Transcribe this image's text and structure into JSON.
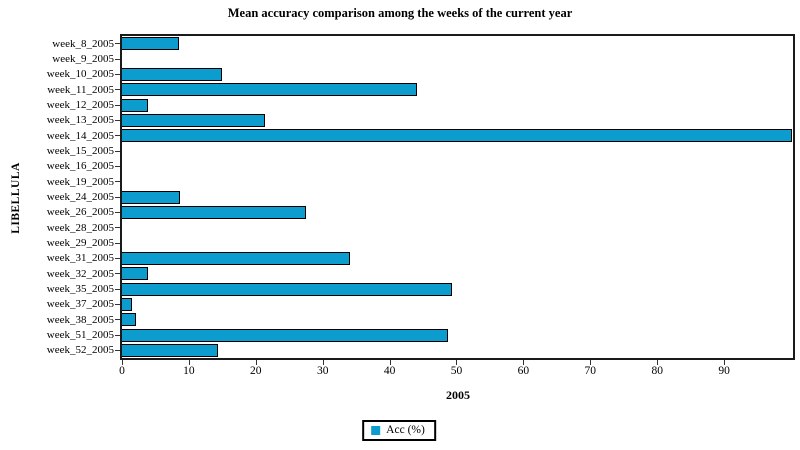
{
  "chart_data": {
    "type": "bar",
    "orientation": "horizontal",
    "title": "Mean accuracy comparison among the weeks of the current year",
    "xlabel": "2005",
    "ylabel": "LIBELLULA",
    "legend": [
      "Acc (%)"
    ],
    "legend_position": "bottom-center",
    "categories": [
      "week_8_2005",
      "week_9_2005",
      "week_10_2005",
      "week_11_2005",
      "week_12_2005",
      "week_13_2005",
      "week_14_2005",
      "week_15_2005",
      "week_16_2005",
      "week_19_2005",
      "week_24_2005",
      "week_26_2005",
      "week_28_2005",
      "week_29_2005",
      "week_31_2005",
      "week_32_2005",
      "week_35_2005",
      "week_37_2005",
      "week_38_2005",
      "week_51_2005",
      "week_52_2005"
    ],
    "values": [
      8.3,
      0,
      14.8,
      43.9,
      3.7,
      21.2,
      100,
      0,
      0,
      0,
      8.5,
      27.3,
      0,
      0,
      34,
      3.8,
      49.2,
      1.4,
      2,
      48.6,
      14.2
    ],
    "xlim": [
      0,
      100.3
    ],
    "x_ticks": [
      0,
      10,
      20,
      30,
      40,
      50,
      60,
      70,
      80,
      90
    ],
    "grid": false,
    "bar_color": "#0d9cce",
    "bar_border_color": "#000000",
    "axis_color": "#1a1a1a"
  }
}
